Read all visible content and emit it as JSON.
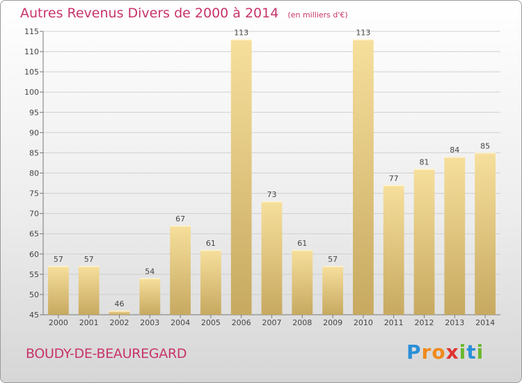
{
  "title": "Autres Revenus Divers de 2000 à 2014",
  "unit": "(en milliers d'€)",
  "location": "BOUDY-DE-BEAUREGARD",
  "brand": {
    "letters": [
      "P",
      "r",
      "o",
      "x",
      "i",
      "t",
      "i"
    ],
    "colors": [
      "#2a8fd8",
      "#f08a1c",
      "#f08a1c",
      "#e03232",
      "#6ab830",
      "#2a8fd8",
      "#6ab830"
    ]
  },
  "colors": {
    "bar_top": "#f6df9c",
    "bar_bottom": "#c7a960",
    "title": "#c8336b"
  },
  "chart_data": {
    "type": "bar",
    "categories": [
      "2000",
      "2001",
      "2002",
      "2003",
      "2004",
      "2005",
      "2006",
      "2007",
      "2008",
      "2009",
      "2010",
      "2011",
      "2012",
      "2013",
      "2014"
    ],
    "values": [
      57,
      57,
      46,
      54,
      67,
      61,
      113,
      73,
      61,
      57,
      113,
      77,
      81,
      84,
      85
    ],
    "ylim": [
      45,
      115
    ],
    "yticks": [
      45,
      50,
      55,
      60,
      65,
      70,
      75,
      80,
      85,
      90,
      95,
      100,
      105,
      110,
      115
    ],
    "grid": true
  }
}
